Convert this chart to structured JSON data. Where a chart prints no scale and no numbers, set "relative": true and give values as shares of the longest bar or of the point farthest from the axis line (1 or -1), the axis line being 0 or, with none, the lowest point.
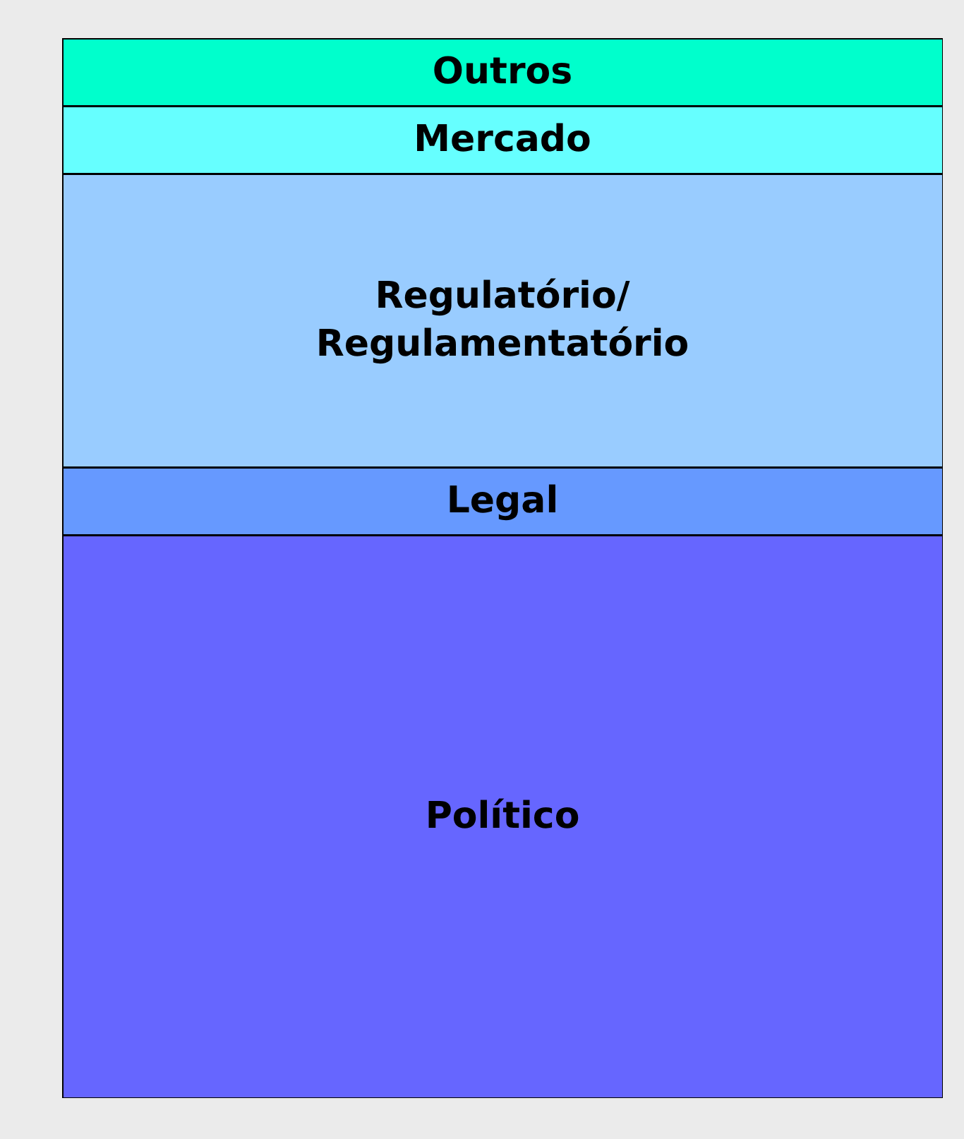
{
  "chart_data": {
    "type": "bar",
    "stacked": true,
    "relative": true,
    "categories": [
      null
    ],
    "series": [
      {
        "name": "Político",
        "color": "#6666ff",
        "values": [
          0.531
        ]
      },
      {
        "name": "Legal",
        "color": "#6699ff",
        "values": [
          0.064
        ]
      },
      {
        "name": "Regulatório/\nRegulamentatório",
        "color": "#99ccff",
        "values": [
          0.277
        ]
      },
      {
        "name": "Mercado",
        "color": "#66ffff",
        "values": [
          0.064
        ]
      },
      {
        "name": "Outros",
        "color": "#00ffcc",
        "values": [
          0.064
        ]
      }
    ],
    "legend": false
  }
}
